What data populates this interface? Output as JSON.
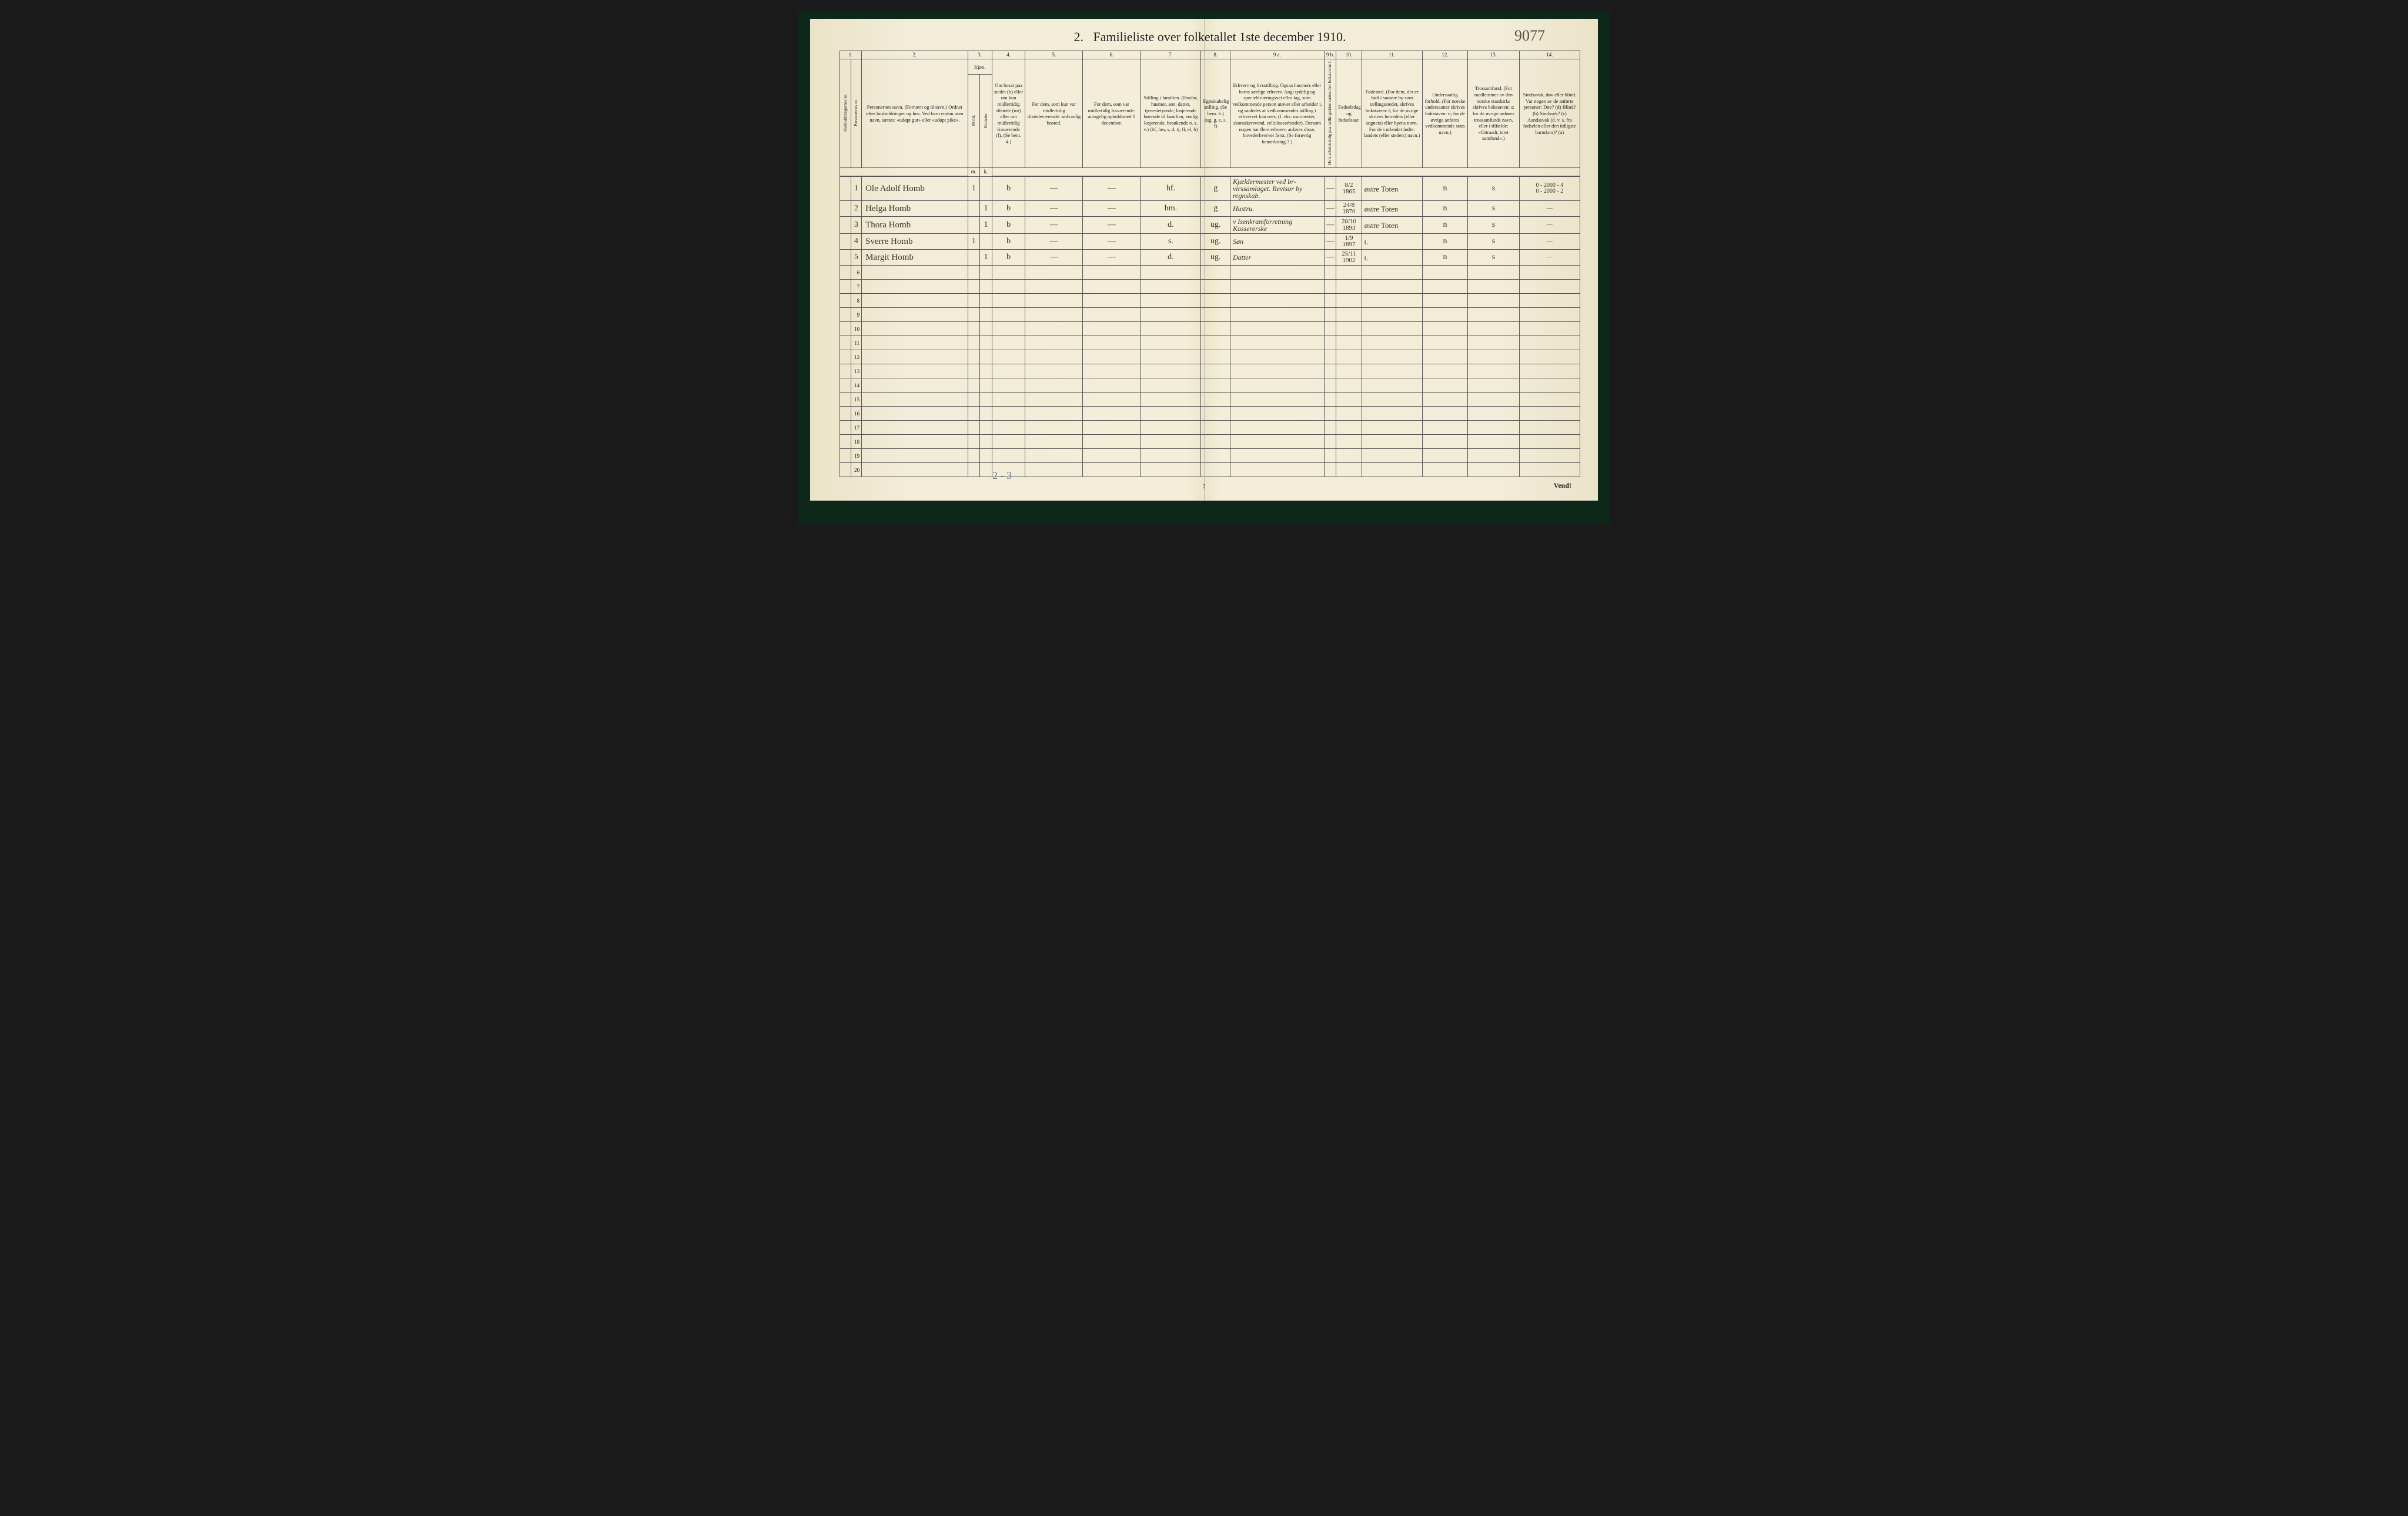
{
  "document": {
    "title_prefix": "2.",
    "title": "Familieliste over folketallet 1ste december 1910.",
    "catalog_number": "9077",
    "pencil_note": "2 - 3",
    "bottom_page_number": "2",
    "vend_text": "Vend!"
  },
  "column_numbers": [
    "1.",
    "",
    "2.",
    "3.",
    "4.",
    "5.",
    "6.",
    "7.",
    "8.",
    "9 a.",
    "9 b.",
    "10.",
    "11.",
    "12.",
    "13.",
    "14."
  ],
  "sub_column_numbers_3": [
    "m.",
    "k."
  ],
  "headers": {
    "c1": "Husholdningernes nr.",
    "c1b": "Personernes nr.",
    "c2": "Personernes navn.\n(Fornavn og tilnavn.)\nOrdnet efter husholdninger og hus.\nVed barn endnu uten navn, sættes: «udøpt gut» eller «udøpt pike».",
    "c3": "Kjøn.",
    "c3a": "M-nd.",
    "c3b": "Kvinder.",
    "c4": "Om bosat paa stedet (b) eller om kun midlertidig tilstede (mt) eller om midlertidig fraværende (f). (Se bem. 4.)",
    "c5": "For dem, som kun var midlertidig tilstedeværende:\nsedvanlig bosted.",
    "c6": "For dem, som var midlertidig fraværende:\nantagelig opholdssted 1 december.",
    "c7": "Stilling i familien.\n(Husfar, husmor, søn, datter, tjenestetyende, losjerende hørende til familien, enslig losjerende, besøkende o. s. v.)\n(hf, hm, s, d, tj, fl, el, b)",
    "c8": "Egteskabelig stilling.\n(Se bem. 6.)\n(ug, g, e, s, f)",
    "c9a": "Erhverv og livsstilling.\nOgsaa husmors eller barns særlige erhverv. Angi tydelig og specielt næringsvei eller fag, som vedkommende person utøver eller arbeider i, og saaledes at vedkommendes stilling i erhvervet kan sees, (f. eks. murmester, skomakersvend, cellulosearbeider). Dersom nogen har flere erhverv, anføres disse, hovederhvervet først.\n(Se forøvrig bemerkning 7.)",
    "c9b": "Hvis arbeidsledig paa tællingstiden sættes her bokstaven: l.",
    "c10": "Fødselsdag og fødselsaar.",
    "c11": "Fødested.\n(For dem, der er født i samme by som tællingsstedet, skrives bokstaven: t; for de øvrige skrives herredets (eller sognets) eller byens navn. For de i utlandet fødte: landets (eller stedets) navn.)",
    "c12": "Undersaatlig forhold.\n(For norske undersaatter skrives bokstaven: n; for de øvrige anføres vedkommende stats navn.)",
    "c13": "Trossamfund.\n(For medlemmer av den norske statskirke skrives bokstaven: s; for de øvrige anføres trossamfunds navn, eller i tilfælde: «Uttraadt, intet samfund».)",
    "c14": "Sindssvak, døv eller blind.\nVar nogen av de anførte personer:\nDøv? (d)\nBlind? (b)\nSindssyk? (s)\nAandssvak (d. v. s. fra fødselen eller den tidligste barndom)? (a)"
  },
  "rows": [
    {
      "num": "1",
      "name": "Ole Adolf Homb",
      "m": "1",
      "k": "",
      "res": "b",
      "away": "—",
      "absent": "—",
      "rel": "hf.",
      "mar": "g",
      "occ": "Kjældermester ved br-virssamlaget. Revisor by regnskab.",
      "occ_red": "",
      "led": "—",
      "dob": "8/2 1865",
      "birthplace": "østre Toten",
      "nat": "n",
      "rel2": "s",
      "dis": "0 - 2000 - 4\n0 - 2000 - 2"
    },
    {
      "num": "2",
      "name": "Helga Homb",
      "m": "",
      "k": "1",
      "res": "b",
      "away": "—",
      "absent": "—",
      "rel": "hm.",
      "mar": "g",
      "occ": "Hustru.",
      "occ_red": "",
      "led": "—",
      "dob": "24/8 1870",
      "birthplace": "østre Toten",
      "nat": "n",
      "rel2": "s",
      "dis": "—"
    },
    {
      "num": "3",
      "name": "Thora Homb",
      "m": "",
      "k": "1",
      "res": "b",
      "away": "—",
      "absent": "—",
      "rel": "d.",
      "mar": "ug.",
      "occ": "Kassererske",
      "occ_red": "v Isenkramforretning",
      "led": "—",
      "dob": "28/10 1893",
      "birthplace": "østre Toten",
      "nat": "n",
      "rel2": "s",
      "dis": "—"
    },
    {
      "num": "4",
      "name": "Sverre Homb",
      "m": "1",
      "k": "",
      "res": "b",
      "away": "—",
      "absent": "—",
      "rel": "s.",
      "mar": "ug.",
      "occ": "Søn",
      "occ_red": "",
      "led": "—",
      "dob": "1/9 1897",
      "birthplace": "t.",
      "nat": "n",
      "rel2": "s",
      "dis": "—"
    },
    {
      "num": "5",
      "name": "Margit Homb",
      "m": "",
      "k": "1",
      "res": "b",
      "away": "—",
      "absent": "—",
      "rel": "d.",
      "mar": "ug.",
      "occ": "Datter",
      "occ_red": "",
      "led": "—",
      "dob": "25/11 1902",
      "birthplace": "t.",
      "nat": "n",
      "rel2": "s",
      "dis": "—"
    }
  ],
  "empty_row_count": 15,
  "styling": {
    "page_bg": "#f2ecd8",
    "border_color": "#555",
    "handwriting_color": "#3a3428",
    "red_ink": "#b03a2a",
    "pencil_color": "#6a7a90",
    "title_fontsize": 22,
    "header_fontsize": 8.5,
    "body_fontsize": 14
  }
}
